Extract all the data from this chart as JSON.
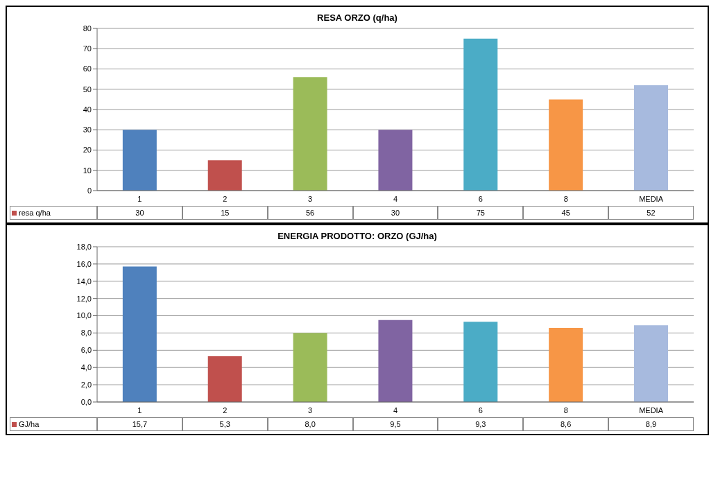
{
  "chart_data": [
    {
      "type": "bar",
      "title": "RESA ORZO (q/ha)",
      "categories": [
        "1",
        "2",
        "3",
        "4",
        "6",
        "8",
        "MEDIA"
      ],
      "series": [
        {
          "name": "resa q/ha",
          "color": "#c0504d",
          "colors": [
            "#4f81bd",
            "#c0504d",
            "#9bbb59",
            "#8064a2",
            "#4bacc6",
            "#f79646",
            "#a7bade"
          ],
          "values": [
            30,
            15,
            56,
            30,
            75,
            45,
            52
          ]
        }
      ],
      "ylim": [
        0,
        80
      ],
      "yticks": [
        0,
        10,
        20,
        30,
        40,
        50,
        60,
        70,
        80
      ],
      "grid": "y",
      "legend": "bottom left",
      "data_labels": true
    },
    {
      "type": "bar",
      "title": "ENERGIA PRODOTTO: ORZO (GJ/ha)",
      "categories": [
        "1",
        "2",
        "3",
        "4",
        "6",
        "8",
        "MEDIA"
      ],
      "series": [
        {
          "name": "GJ/ha",
          "color": "#c0504d",
          "colors": [
            "#4f81bd",
            "#c0504d",
            "#9bbb59",
            "#8064a2",
            "#4bacc6",
            "#f79646",
            "#a7bade"
          ],
          "values": [
            15.7,
            5.3,
            8.0,
            9.5,
            9.3,
            8.6,
            8.9
          ],
          "value_labels": [
            "15,7",
            "5,3",
            "8,0",
            "9,5",
            "9,3",
            "8,6",
            "8,9"
          ]
        }
      ],
      "ylim": [
        0,
        18
      ],
      "yticks": [
        {
          "value": 0,
          "label": "0,0"
        },
        {
          "value": 2,
          "label": "2,0"
        },
        {
          "value": 4,
          "label": "4,0"
        },
        {
          "value": 6,
          "label": "6,0"
        },
        {
          "value": 8,
          "label": "8,0"
        },
        {
          "value": 10,
          "label": "10,0"
        },
        {
          "value": 12,
          "label": "12,0"
        },
        {
          "value": 14,
          "label": "14,0"
        },
        {
          "value": 16,
          "label": "16,0"
        },
        {
          "value": 18,
          "label": "18,0"
        }
      ],
      "grid": "y",
      "legend": "bottom left"
    }
  ]
}
